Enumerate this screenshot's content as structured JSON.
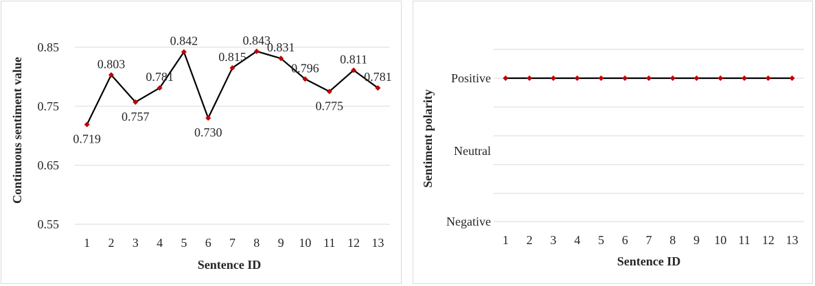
{
  "chart_data": [
    {
      "type": "line",
      "xlabel": "Sentence ID",
      "ylabel": "Continuous sentiment value",
      "categories": [
        "1",
        "2",
        "3",
        "4",
        "5",
        "6",
        "7",
        "8",
        "9",
        "10",
        "11",
        "12",
        "13"
      ],
      "values": [
        0.719,
        0.803,
        0.757,
        0.781,
        0.842,
        0.73,
        0.815,
        0.843,
        0.831,
        0.796,
        0.775,
        0.811,
        0.781
      ],
      "data_labels": [
        "0.719",
        "0.803",
        "0.757",
        "0.781",
        "0.842",
        "0.730",
        "0.815",
        "0.843",
        "0.831",
        "0.796",
        "0.775",
        "0.811",
        "0.781"
      ],
      "yticks": [
        "0.55",
        "0.65",
        "0.75",
        "0.85"
      ],
      "ylim": [
        0.55,
        0.88
      ],
      "grid": true,
      "line_color": "#000000",
      "marker_color": "#c00000"
    },
    {
      "type": "line",
      "xlabel": "Sentence ID",
      "ylabel": "Sentiment polarity",
      "categories": [
        "1",
        "2",
        "3",
        "4",
        "5",
        "6",
        "7",
        "8",
        "9",
        "10",
        "11",
        "12",
        "13"
      ],
      "values": [
        "Positive",
        "Positive",
        "Positive",
        "Positive",
        "Positive",
        "Positive",
        "Positive",
        "Positive",
        "Positive",
        "Positive",
        "Positive",
        "Positive",
        "Positive"
      ],
      "yticks": [
        "Negative",
        "Neutral",
        "Positive"
      ],
      "grid": true,
      "line_color": "#000000",
      "marker_color": "#c00000"
    }
  ]
}
